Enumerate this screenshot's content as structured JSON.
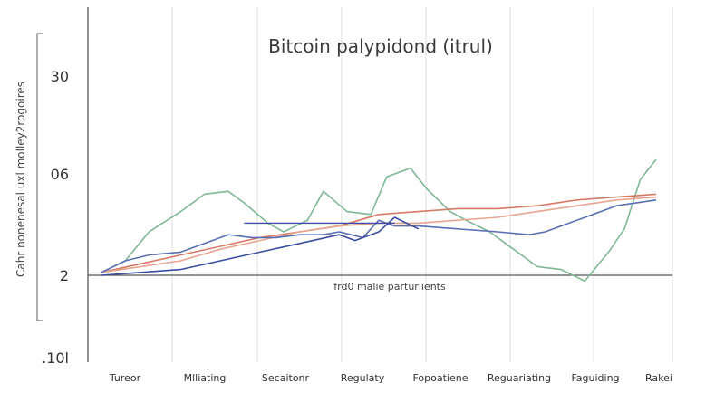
{
  "chart_data": {
    "type": "line",
    "title": "Bitcoin palypidond (itrul)",
    "ylabel": "Cahr nonenesal uxl molley2rogoires",
    "xlabel": "",
    "annotation": "frd0 malie parturlients",
    "categories": [
      "Tureor",
      "Mlliating",
      "Secaitonr",
      "Regulaty",
      "Fopoatiene",
      "Reguariating",
      "Faguiding",
      "Rakei"
    ],
    "ytick_labels": [
      "30",
      "06",
      "2",
      ".10l"
    ],
    "grid": true,
    "legend": "none",
    "series": [
      {
        "color": "#7fb894",
        "x": [
          0,
          0.3,
          0.6,
          1.0,
          1.3,
          1.6,
          1.8,
          2.1,
          2.3,
          2.6,
          2.8,
          3.1,
          3.4,
          3.6,
          3.9,
          4.1,
          4.4,
          4.6,
          4.9,
          5.2,
          5.5,
          5.8,
          6.1,
          6.4,
          6.6,
          6.8,
          7.0
        ],
        "values": [
          1,
          5,
          15,
          22,
          28,
          29,
          25,
          18,
          15,
          19,
          29,
          22,
          21,
          34,
          37,
          30,
          22,
          19,
          15,
          9,
          3,
          2,
          -2,
          8,
          16,
          33,
          40
        ]
      },
      {
        "color": "#d67a66",
        "x": [
          0,
          0.5,
          1.0,
          1.5,
          2.0,
          2.5,
          3.0,
          3.5,
          4.0,
          4.5,
          5.0,
          5.5,
          6.0,
          6.5,
          7.0
        ],
        "values": [
          1,
          4,
          7,
          10,
          13,
          15,
          17,
          21,
          22,
          23,
          23,
          24,
          26,
          27,
          28
        ]
      },
      {
        "color": "#e8a590",
        "x": [
          0,
          0.5,
          1.0,
          1.5,
          2.0,
          2.5,
          3.0,
          3.5,
          4.0,
          4.5,
          5.0,
          5.5,
          6.0,
          6.5,
          7.0
        ],
        "values": [
          1,
          3,
          5,
          9,
          12,
          15,
          17,
          18,
          18,
          19,
          20,
          22,
          24,
          26,
          27
        ]
      },
      {
        "color": "#5a6fb3",
        "x": [
          0,
          0.3,
          0.6,
          1.0,
          1.3,
          1.6,
          1.9,
          2.2,
          2.5,
          2.8,
          3.0,
          3.3,
          3.5,
          3.7,
          4.0,
          4.5,
          5.0,
          5.4,
          5.6,
          6.0,
          6.5,
          7.0
        ],
        "values": [
          1,
          5,
          7,
          8,
          11,
          14,
          13,
          13,
          14,
          14,
          15,
          13,
          19,
          17,
          17,
          16,
          15,
          14,
          15,
          19,
          24,
          26
        ]
      },
      {
        "color": "#3d4ea0",
        "x": [
          0,
          0.5,
          1.0,
          1.5,
          2.0,
          2.5,
          3.0,
          3.2,
          3.5,
          3.7,
          4.0
        ],
        "values": [
          0,
          1,
          2,
          5,
          8,
          11,
          14,
          12,
          15,
          20,
          16
        ]
      }
    ],
    "reference_line": {
      "color": "#3d4ea0",
      "x_from": 1.8,
      "x_to": 3.7,
      "value": 18
    }
  }
}
